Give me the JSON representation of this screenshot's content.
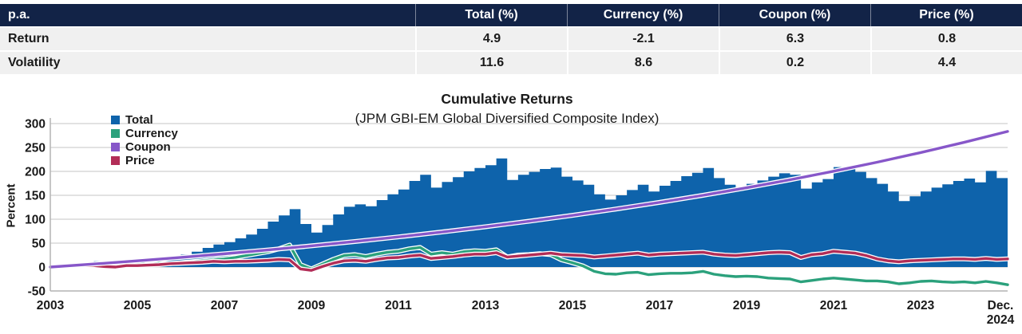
{
  "table": {
    "header_bg": "#122347",
    "header": [
      "p.a.",
      "Total (%)",
      "Currency (%)",
      "Coupon (%)",
      "Price (%)"
    ],
    "rows": [
      {
        "label": "Return",
        "values": [
          "4.9",
          "-2.1",
          "6.3",
          "0.8"
        ]
      },
      {
        "label": "Volatility",
        "values": [
          "11.6",
          "8.6",
          "0.2",
          "4.4"
        ]
      }
    ]
  },
  "chart_data": {
    "type": "area",
    "title": "Cumulative Returns",
    "subtitle": "(JPM GBI-EM Global Diversified Composite Index)",
    "ylabel": "Percent",
    "ylim": [
      -50,
      300
    ],
    "grid": "horizontal",
    "legend_position": "top-left",
    "y_ticks": [
      300,
      250,
      200,
      150,
      100,
      50,
      0,
      -50
    ],
    "x_start": 2003,
    "x_end": 2025,
    "x_ticks": [
      {
        "t": 2003,
        "label": "2003"
      },
      {
        "t": 2005,
        "label": "2005"
      },
      {
        "t": 2007,
        "label": "2007"
      },
      {
        "t": 2009,
        "label": "2009"
      },
      {
        "t": 2011,
        "label": "2011"
      },
      {
        "t": 2013,
        "label": "2013"
      },
      {
        "t": 2015,
        "label": "2015"
      },
      {
        "t": 2017,
        "label": "2017"
      },
      {
        "t": 2019,
        "label": "2019"
      },
      {
        "t": 2021,
        "label": "2021"
      },
      {
        "t": 2023,
        "label": "2023"
      },
      {
        "t": 2025,
        "label": "Dec. 2024",
        "two_line": true
      }
    ],
    "series": [
      {
        "name": "Total",
        "color": "#0e63ab",
        "type": "area-step",
        "z": 1,
        "x_step": 0.25,
        "values": [
          0,
          4,
          7,
          10,
          12,
          7,
          5,
          11,
          14,
          12,
          17,
          20,
          26,
          32,
          40,
          47,
          52,
          60,
          68,
          80,
          95,
          108,
          121,
          90,
          72,
          88,
          110,
          126,
          131,
          127,
          140,
          152,
          162,
          180,
          193,
          166,
          178,
          188,
          200,
          207,
          213,
          227,
          182,
          193,
          199,
          205,
          208,
          189,
          181,
          172,
          152,
          141,
          150,
          161,
          172,
          158,
          170,
          180,
          190,
          197,
          207,
          186,
          172,
          167,
          174,
          181,
          189,
          196,
          193,
          164,
          177,
          184,
          209,
          206,
          199,
          186,
          174,
          158,
          138,
          148,
          158,
          166,
          173,
          180,
          185,
          177,
          201,
          186,
          184
        ]
      },
      {
        "name": "Currency",
        "color": "#2ba17c",
        "type": "line",
        "z": 2,
        "x_step": 0.25,
        "values": [
          0,
          2,
          4,
          5,
          6,
          3,
          2,
          6,
          8,
          5,
          8,
          7,
          9,
          11,
          13,
          15,
          17,
          20,
          24,
          28,
          32,
          38,
          46,
          5,
          -4,
          6,
          16,
          24,
          26,
          22,
          27,
          31,
          33,
          38,
          41,
          27,
          30,
          27,
          32,
          34,
          33,
          36,
          21,
          25,
          26,
          28,
          26,
          15,
          9,
          2,
          -9,
          -14,
          -15,
          -12,
          -11,
          -16,
          -14,
          -13,
          -13,
          -12,
          -9,
          -15,
          -18,
          -20,
          -19,
          -20,
          -23,
          -24,
          -25,
          -31,
          -28,
          -25,
          -23,
          -25,
          -27,
          -29,
          -29,
          -31,
          -35,
          -33,
          -30,
          -29,
          -31,
          -32,
          -31,
          -33,
          -30,
          -33,
          -37
        ]
      },
      {
        "name": "Coupon",
        "color": "#8757c9",
        "type": "line",
        "z": 4,
        "x_step": 1,
        "values": [
          0,
          6.3,
          13,
          20.1,
          27.7,
          35.7,
          44.3,
          53.4,
          63,
          73.3,
          84.2,
          95.8,
          108.1,
          121.3,
          135.2,
          150,
          165.8,
          182.5,
          200.3,
          219.2,
          239.3,
          260.7,
          283.5
        ]
      },
      {
        "name": "Price",
        "color": "#b22d57",
        "type": "line",
        "z": 3,
        "x_step": 0.25,
        "values": [
          0,
          1,
          2,
          3,
          3,
          1,
          0,
          3,
          3,
          4,
          5,
          7,
          8,
          9,
          10,
          12,
          11,
          12,
          12,
          13,
          14,
          16,
          15,
          -4,
          -7,
          1,
          8,
          13,
          14,
          12,
          16,
          19,
          20,
          23,
          25,
          18,
          20,
          22,
          25,
          27,
          27,
          30,
          21,
          23,
          25,
          27,
          29,
          26,
          25,
          24,
          21,
          23,
          25,
          27,
          29,
          25,
          27,
          28,
          29,
          30,
          31,
          27,
          25,
          24,
          26,
          28,
          30,
          31,
          30,
          20,
          26,
          28,
          33,
          31,
          29,
          24,
          17,
          13,
          11,
          13,
          14,
          15,
          16,
          17,
          17,
          16,
          18,
          16,
          17
        ]
      }
    ]
  }
}
